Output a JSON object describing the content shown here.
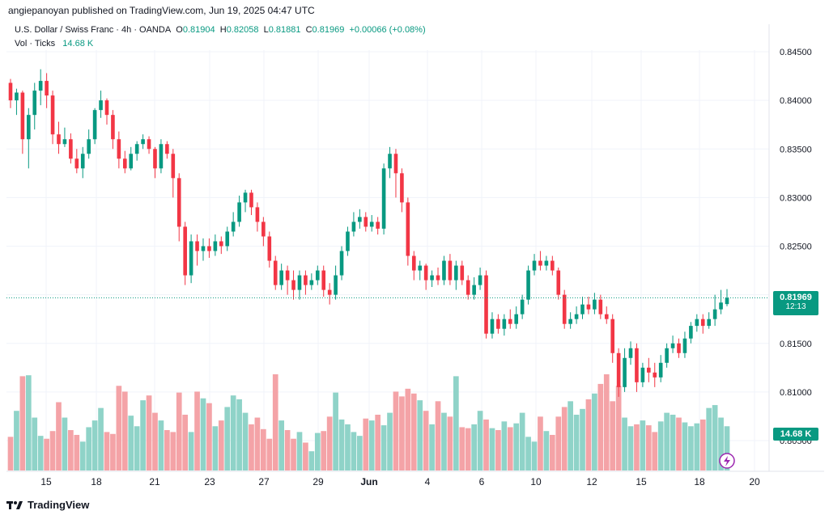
{
  "header": {
    "published_line": "angiepanoyan published on TradingView.com, Jun 19, 2025 04:47 UTC"
  },
  "legend": {
    "symbol_line": "U.S. Dollar / Swiss Franc · 4h · OANDA",
    "o_label": "O",
    "o_value": "0.81904",
    "h_label": "H",
    "h_value": "0.82058",
    "l_label": "L",
    "l_value": "0.81881",
    "c_label": "C",
    "c_value": "0.81969",
    "change": "+0.00066 (+0.08%)",
    "vol_label": "Vol · Ticks",
    "vol_value": "14.68 K"
  },
  "price_tag": {
    "price": "0.81969",
    "countdown": "12:13"
  },
  "volume_tag": {
    "value": "14.68 K"
  },
  "footer": {
    "brand": "TradingView"
  },
  "colors": {
    "up": "#089981",
    "down": "#f23645",
    "vol_up": "#8fd3c8",
    "vol_down": "#f4a3a7",
    "grid": "#f0f3fa"
  },
  "chart_data": {
    "type": "candlestick",
    "title": "U.S. Dollar / Swiss Franc · 4h · OANDA",
    "ylim": [
      0.8045,
      0.8467
    ],
    "y_ticks": [
      "0.84500",
      "0.84000",
      "0.83500",
      "0.83000",
      "0.82500",
      "0.82000",
      "0.81500",
      "0.81000",
      "0.80500"
    ],
    "x_ticks": [
      "15",
      "18",
      "21",
      "23",
      "27",
      "29",
      "Jun",
      "4",
      "6",
      "10",
      "12",
      "15",
      "18",
      "20"
    ],
    "last_price": 0.81969,
    "candles": [
      {
        "o": 0.8418,
        "c": 0.84,
        "h": 0.8422,
        "l": 0.8392,
        "v": 0.35
      },
      {
        "o": 0.84,
        "c": 0.8408,
        "h": 0.8412,
        "l": 0.8385,
        "v": 0.62
      },
      {
        "o": 0.8408,
        "c": 0.836,
        "h": 0.841,
        "l": 0.8345,
        "v": 0.98
      },
      {
        "o": 0.836,
        "c": 0.8385,
        "h": 0.8392,
        "l": 0.833,
        "v": 0.99
      },
      {
        "o": 0.8385,
        "c": 0.841,
        "h": 0.8418,
        "l": 0.837,
        "v": 0.55
      },
      {
        "o": 0.841,
        "c": 0.842,
        "h": 0.8432,
        "l": 0.8395,
        "v": 0.36
      },
      {
        "o": 0.842,
        "c": 0.8405,
        "h": 0.8428,
        "l": 0.8392,
        "v": 0.33
      },
      {
        "o": 0.8405,
        "c": 0.8365,
        "h": 0.841,
        "l": 0.8355,
        "v": 0.41
      },
      {
        "o": 0.8365,
        "c": 0.8355,
        "h": 0.8378,
        "l": 0.8345,
        "v": 0.71
      },
      {
        "o": 0.8355,
        "c": 0.836,
        "h": 0.8372,
        "l": 0.8352,
        "v": 0.55
      },
      {
        "o": 0.836,
        "c": 0.834,
        "h": 0.8366,
        "l": 0.8335,
        "v": 0.42
      },
      {
        "o": 0.834,
        "c": 0.833,
        "h": 0.835,
        "l": 0.8325,
        "v": 0.37
      },
      {
        "o": 0.833,
        "c": 0.8345,
        "h": 0.8352,
        "l": 0.832,
        "v": 0.3
      },
      {
        "o": 0.8345,
        "c": 0.836,
        "h": 0.837,
        "l": 0.834,
        "v": 0.45
      },
      {
        "o": 0.836,
        "c": 0.839,
        "h": 0.8392,
        "l": 0.8355,
        "v": 0.52
      },
      {
        "o": 0.839,
        "c": 0.84,
        "h": 0.841,
        "l": 0.8382,
        "v": 0.65
      },
      {
        "o": 0.84,
        "c": 0.8385,
        "h": 0.8402,
        "l": 0.8375,
        "v": 0.4
      },
      {
        "o": 0.8385,
        "c": 0.836,
        "h": 0.839,
        "l": 0.835,
        "v": 0.38
      },
      {
        "o": 0.836,
        "c": 0.834,
        "h": 0.8368,
        "l": 0.833,
        "v": 0.88
      },
      {
        "o": 0.834,
        "c": 0.833,
        "h": 0.8348,
        "l": 0.8325,
        "v": 0.82
      },
      {
        "o": 0.833,
        "c": 0.8345,
        "h": 0.8352,
        "l": 0.8328,
        "v": 0.57
      },
      {
        "o": 0.8345,
        "c": 0.8355,
        "h": 0.8358,
        "l": 0.8338,
        "v": 0.46
      },
      {
        "o": 0.8355,
        "c": 0.836,
        "h": 0.8365,
        "l": 0.835,
        "v": 0.73
      },
      {
        "o": 0.836,
        "c": 0.835,
        "h": 0.8363,
        "l": 0.8345,
        "v": 0.78
      },
      {
        "o": 0.835,
        "c": 0.833,
        "h": 0.8352,
        "l": 0.832,
        "v": 0.6
      },
      {
        "o": 0.833,
        "c": 0.8355,
        "h": 0.836,
        "l": 0.8325,
        "v": 0.52
      },
      {
        "o": 0.8355,
        "c": 0.8345,
        "h": 0.8358,
        "l": 0.834,
        "v": 0.42
      },
      {
        "o": 0.8345,
        "c": 0.832,
        "h": 0.835,
        "l": 0.83,
        "v": 0.4
      },
      {
        "o": 0.832,
        "c": 0.827,
        "h": 0.8325,
        "l": 0.8255,
        "v": 0.81
      },
      {
        "o": 0.827,
        "c": 0.822,
        "h": 0.8275,
        "l": 0.821,
        "v": 0.58
      },
      {
        "o": 0.822,
        "c": 0.8255,
        "h": 0.8262,
        "l": 0.8212,
        "v": 0.4
      },
      {
        "o": 0.8255,
        "c": 0.8245,
        "h": 0.8262,
        "l": 0.823,
        "v": 0.82
      },
      {
        "o": 0.8245,
        "c": 0.825,
        "h": 0.8258,
        "l": 0.8235,
        "v": 0.75
      },
      {
        "o": 0.825,
        "c": 0.8245,
        "h": 0.8258,
        "l": 0.8238,
        "v": 0.7
      },
      {
        "o": 0.8245,
        "c": 0.8255,
        "h": 0.8262,
        "l": 0.824,
        "v": 0.46
      },
      {
        "o": 0.8255,
        "c": 0.825,
        "h": 0.826,
        "l": 0.8242,
        "v": 0.52
      },
      {
        "o": 0.825,
        "c": 0.8265,
        "h": 0.827,
        "l": 0.8245,
        "v": 0.66
      },
      {
        "o": 0.8265,
        "c": 0.8275,
        "h": 0.8285,
        "l": 0.826,
        "v": 0.78
      },
      {
        "o": 0.8275,
        "c": 0.8295,
        "h": 0.8302,
        "l": 0.827,
        "v": 0.74
      },
      {
        "o": 0.8295,
        "c": 0.8305,
        "h": 0.8308,
        "l": 0.8285,
        "v": 0.6
      },
      {
        "o": 0.8305,
        "c": 0.829,
        "h": 0.8308,
        "l": 0.8282,
        "v": 0.48
      },
      {
        "o": 0.829,
        "c": 0.8275,
        "h": 0.8295,
        "l": 0.8265,
        "v": 0.55
      },
      {
        "o": 0.8275,
        "c": 0.826,
        "h": 0.828,
        "l": 0.825,
        "v": 0.43
      },
      {
        "o": 0.826,
        "c": 0.8235,
        "h": 0.8265,
        "l": 0.8228,
        "v": 0.33
      },
      {
        "o": 0.8235,
        "c": 0.821,
        "h": 0.824,
        "l": 0.8205,
        "v": 1.0
      },
      {
        "o": 0.821,
        "c": 0.8225,
        "h": 0.8232,
        "l": 0.8205,
        "v": 0.52
      },
      {
        "o": 0.8225,
        "c": 0.8215,
        "h": 0.823,
        "l": 0.82,
        "v": 0.42
      },
      {
        "o": 0.8215,
        "c": 0.8205,
        "h": 0.8225,
        "l": 0.8195,
        "v": 0.33
      },
      {
        "o": 0.8205,
        "c": 0.822,
        "h": 0.8225,
        "l": 0.8195,
        "v": 0.4
      },
      {
        "o": 0.822,
        "c": 0.821,
        "h": 0.8225,
        "l": 0.82,
        "v": 0.29
      },
      {
        "o": 0.821,
        "c": 0.8215,
        "h": 0.8222,
        "l": 0.8205,
        "v": 0.2
      },
      {
        "o": 0.8215,
        "c": 0.8225,
        "h": 0.823,
        "l": 0.821,
        "v": 0.39
      },
      {
        "o": 0.8225,
        "c": 0.8205,
        "h": 0.823,
        "l": 0.8198,
        "v": 0.41
      },
      {
        "o": 0.8205,
        "c": 0.82,
        "h": 0.8212,
        "l": 0.819,
        "v": 0.56
      },
      {
        "o": 0.82,
        "c": 0.822,
        "h": 0.823,
        "l": 0.8195,
        "v": 0.81
      },
      {
        "o": 0.822,
        "c": 0.8245,
        "h": 0.825,
        "l": 0.8215,
        "v": 0.53
      },
      {
        "o": 0.8245,
        "c": 0.8265,
        "h": 0.827,
        "l": 0.824,
        "v": 0.48
      },
      {
        "o": 0.8265,
        "c": 0.8275,
        "h": 0.8285,
        "l": 0.826,
        "v": 0.4
      },
      {
        "o": 0.8275,
        "c": 0.828,
        "h": 0.8288,
        "l": 0.8268,
        "v": 0.36
      },
      {
        "o": 0.828,
        "c": 0.827,
        "h": 0.8285,
        "l": 0.8265,
        "v": 0.54
      },
      {
        "o": 0.827,
        "c": 0.8275,
        "h": 0.8282,
        "l": 0.8265,
        "v": 0.52
      },
      {
        "o": 0.8275,
        "c": 0.8268,
        "h": 0.828,
        "l": 0.8262,
        "v": 0.58
      },
      {
        "o": 0.8268,
        "c": 0.833,
        "h": 0.8335,
        "l": 0.8262,
        "v": 0.47
      },
      {
        "o": 0.833,
        "c": 0.8345,
        "h": 0.8352,
        "l": 0.832,
        "v": 0.6
      },
      {
        "o": 0.8345,
        "c": 0.8325,
        "h": 0.835,
        "l": 0.83,
        "v": 0.82
      },
      {
        "o": 0.8325,
        "c": 0.8295,
        "h": 0.833,
        "l": 0.8285,
        "v": 0.77
      },
      {
        "o": 0.8295,
        "c": 0.824,
        "h": 0.83,
        "l": 0.823,
        "v": 0.85
      },
      {
        "o": 0.824,
        "c": 0.8225,
        "h": 0.8245,
        "l": 0.8215,
        "v": 0.8
      },
      {
        "o": 0.8225,
        "c": 0.823,
        "h": 0.8235,
        "l": 0.8215,
        "v": 0.73
      },
      {
        "o": 0.823,
        "c": 0.8215,
        "h": 0.8232,
        "l": 0.8205,
        "v": 0.62
      },
      {
        "o": 0.8215,
        "c": 0.822,
        "h": 0.8225,
        "l": 0.8208,
        "v": 0.48
      },
      {
        "o": 0.822,
        "c": 0.8215,
        "h": 0.8228,
        "l": 0.821,
        "v": 0.72
      },
      {
        "o": 0.8215,
        "c": 0.8235,
        "h": 0.824,
        "l": 0.821,
        "v": 0.6
      },
      {
        "o": 0.8235,
        "c": 0.8215,
        "h": 0.8242,
        "l": 0.821,
        "v": 0.56
      },
      {
        "o": 0.8215,
        "c": 0.823,
        "h": 0.8235,
        "l": 0.8205,
        "v": 0.98
      },
      {
        "o": 0.823,
        "c": 0.8215,
        "h": 0.8235,
        "l": 0.821,
        "v": 0.45
      },
      {
        "o": 0.8215,
        "c": 0.82,
        "h": 0.822,
        "l": 0.8195,
        "v": 0.44
      },
      {
        "o": 0.82,
        "c": 0.821,
        "h": 0.8218,
        "l": 0.8195,
        "v": 0.48
      },
      {
        "o": 0.821,
        "c": 0.822,
        "h": 0.8228,
        "l": 0.8205,
        "v": 0.62
      },
      {
        "o": 0.822,
        "c": 0.816,
        "h": 0.8225,
        "l": 0.8155,
        "v": 0.53
      },
      {
        "o": 0.816,
        "c": 0.8175,
        "h": 0.8182,
        "l": 0.8155,
        "v": 0.44
      },
      {
        "o": 0.8175,
        "c": 0.8165,
        "h": 0.818,
        "l": 0.816,
        "v": 0.42
      },
      {
        "o": 0.8165,
        "c": 0.8175,
        "h": 0.818,
        "l": 0.8158,
        "v": 0.51
      },
      {
        "o": 0.8175,
        "c": 0.817,
        "h": 0.8185,
        "l": 0.8165,
        "v": 0.45
      },
      {
        "o": 0.817,
        "c": 0.818,
        "h": 0.8188,
        "l": 0.8165,
        "v": 0.49
      },
      {
        "o": 0.818,
        "c": 0.8195,
        "h": 0.82,
        "l": 0.8175,
        "v": 0.6
      },
      {
        "o": 0.8195,
        "c": 0.8225,
        "h": 0.823,
        "l": 0.819,
        "v": 0.35
      },
      {
        "o": 0.8225,
        "c": 0.8235,
        "h": 0.8242,
        "l": 0.822,
        "v": 0.3
      },
      {
        "o": 0.8235,
        "c": 0.823,
        "h": 0.8245,
        "l": 0.8225,
        "v": 0.56
      },
      {
        "o": 0.823,
        "c": 0.8235,
        "h": 0.824,
        "l": 0.8225,
        "v": 0.41
      },
      {
        "o": 0.8235,
        "c": 0.8225,
        "h": 0.824,
        "l": 0.822,
        "v": 0.37
      },
      {
        "o": 0.8225,
        "c": 0.82,
        "h": 0.8228,
        "l": 0.8195,
        "v": 0.56
      },
      {
        "o": 0.82,
        "c": 0.817,
        "h": 0.8205,
        "l": 0.8165,
        "v": 0.66
      },
      {
        "o": 0.817,
        "c": 0.8175,
        "h": 0.8182,
        "l": 0.8165,
        "v": 0.72
      },
      {
        "o": 0.8175,
        "c": 0.818,
        "h": 0.8188,
        "l": 0.817,
        "v": 0.58
      },
      {
        "o": 0.818,
        "c": 0.819,
        "h": 0.8198,
        "l": 0.8175,
        "v": 0.64
      },
      {
        "o": 0.819,
        "c": 0.8185,
        "h": 0.8198,
        "l": 0.818,
        "v": 0.74
      },
      {
        "o": 0.8185,
        "c": 0.8195,
        "h": 0.8202,
        "l": 0.818,
        "v": 0.8
      },
      {
        "o": 0.8195,
        "c": 0.818,
        "h": 0.82,
        "l": 0.8175,
        "v": 0.9
      },
      {
        "o": 0.818,
        "c": 0.8175,
        "h": 0.8188,
        "l": 0.817,
        "v": 1.0
      },
      {
        "o": 0.8175,
        "c": 0.814,
        "h": 0.818,
        "l": 0.813,
        "v": 0.72
      },
      {
        "o": 0.814,
        "c": 0.8105,
        "h": 0.8145,
        "l": 0.8095,
        "v": 0.88
      },
      {
        "o": 0.8105,
        "c": 0.8135,
        "h": 0.8145,
        "l": 0.81,
        "v": 0.55
      },
      {
        "o": 0.8135,
        "c": 0.8145,
        "h": 0.8152,
        "l": 0.8128,
        "v": 0.46
      },
      {
        "o": 0.8145,
        "c": 0.811,
        "h": 0.815,
        "l": 0.81,
        "v": 0.48
      },
      {
        "o": 0.811,
        "c": 0.8125,
        "h": 0.813,
        "l": 0.8105,
        "v": 0.52
      },
      {
        "o": 0.8125,
        "c": 0.812,
        "h": 0.8135,
        "l": 0.811,
        "v": 0.47
      },
      {
        "o": 0.812,
        "c": 0.8115,
        "h": 0.813,
        "l": 0.8105,
        "v": 0.4
      },
      {
        "o": 0.8115,
        "c": 0.813,
        "h": 0.8138,
        "l": 0.811,
        "v": 0.51
      },
      {
        "o": 0.813,
        "c": 0.8145,
        "h": 0.815,
        "l": 0.8125,
        "v": 0.6
      },
      {
        "o": 0.8145,
        "c": 0.815,
        "h": 0.8158,
        "l": 0.814,
        "v": 0.58
      },
      {
        "o": 0.815,
        "c": 0.814,
        "h": 0.8155,
        "l": 0.8135,
        "v": 0.55
      },
      {
        "o": 0.814,
        "c": 0.8155,
        "h": 0.8162,
        "l": 0.8135,
        "v": 0.5
      },
      {
        "o": 0.8155,
        "c": 0.8168,
        "h": 0.8172,
        "l": 0.815,
        "v": 0.46
      },
      {
        "o": 0.8168,
        "c": 0.8175,
        "h": 0.818,
        "l": 0.8162,
        "v": 0.49
      },
      {
        "o": 0.8175,
        "c": 0.8168,
        "h": 0.818,
        "l": 0.816,
        "v": 0.53
      },
      {
        "o": 0.8168,
        "c": 0.8175,
        "h": 0.8182,
        "l": 0.8165,
        "v": 0.65
      },
      {
        "o": 0.8175,
        "c": 0.8185,
        "h": 0.82,
        "l": 0.8168,
        "v": 0.68
      },
      {
        "o": 0.8185,
        "c": 0.8192,
        "h": 0.8205,
        "l": 0.818,
        "v": 0.55
      },
      {
        "o": 0.81904,
        "c": 0.81969,
        "h": 0.82058,
        "l": 0.81881,
        "v": 0.46
      }
    ]
  }
}
